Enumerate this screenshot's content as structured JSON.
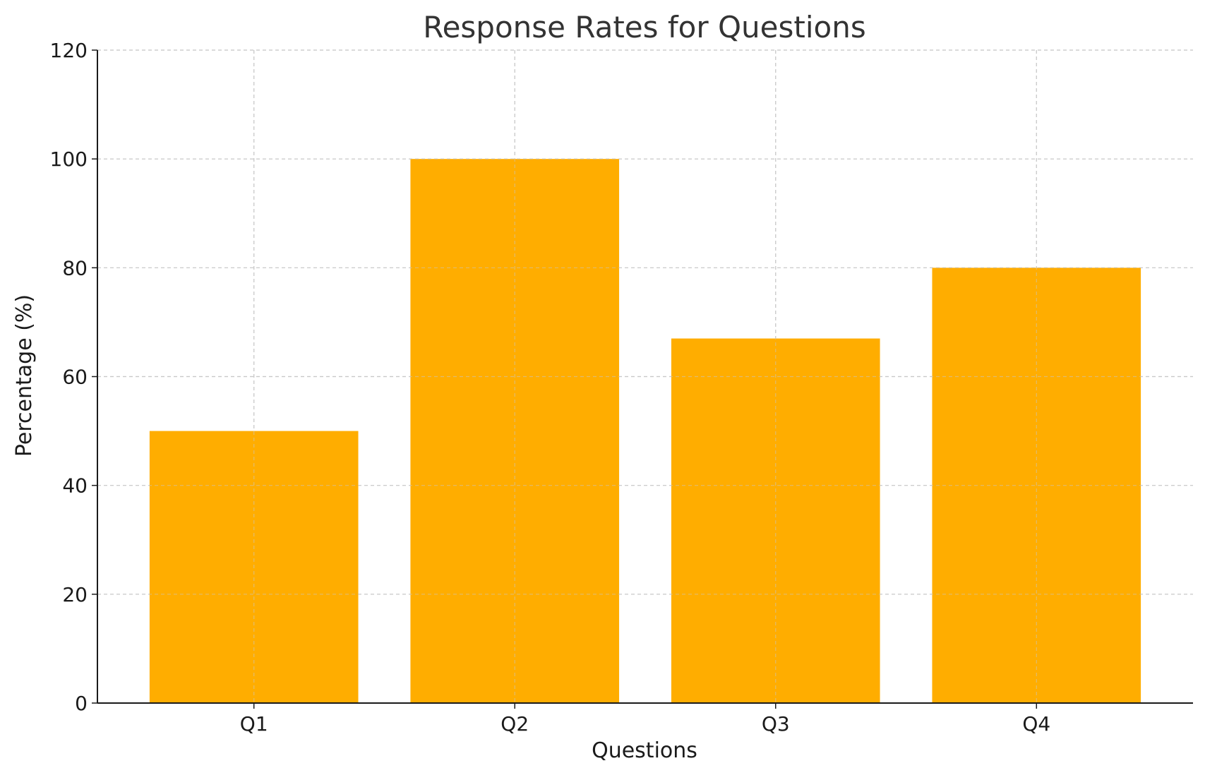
{
  "chart_data": {
    "type": "bar",
    "title": "Response Rates for Questions",
    "xlabel": "Questions",
    "ylabel": "Percentage (%)",
    "categories": [
      "Q1",
      "Q2",
      "Q3",
      "Q4"
    ],
    "values": [
      50,
      100,
      67,
      80
    ],
    "ylim": [
      0,
      120
    ],
    "yticks": [
      0,
      20,
      40,
      60,
      80,
      100,
      120
    ],
    "grid": true,
    "bar_color": "#ffad00"
  }
}
